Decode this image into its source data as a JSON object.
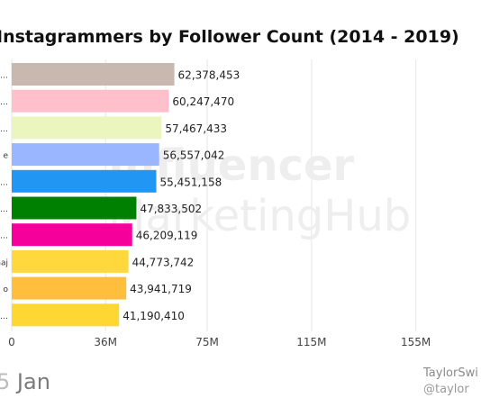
{
  "chart_data": {
    "type": "bar",
    "orientation": "horizontal",
    "title": "Instagrammers by Follower Count (2014 - 2019)",
    "categories": [
      "v…",
      "…",
      "d…",
      "e",
      "r…",
      "…",
      "…",
      "naj",
      "o",
      "…"
    ],
    "values": [
      62378453,
      60247470,
      57467433,
      56557042,
      55451158,
      47833502,
      46209119,
      44773742,
      43941719,
      41190410
    ],
    "value_labels": [
      "62,378,453",
      "60,247,470",
      "57,467,433",
      "56,557,042",
      "55,451,158",
      "47,833,502",
      "46,209,119",
      "44,773,742",
      "43,941,719",
      "41,190,410"
    ],
    "colors": [
      "#c8b8b0",
      "#ffc0cb",
      "#eaf6bd",
      "#9ab6ff",
      "#2196f3",
      "#008000",
      "#f5009b",
      "#ffd83d",
      "#ffbf3d",
      "#ffd733"
    ],
    "x_ticks": [
      {
        "value": 0,
        "label": "0"
      },
      {
        "value": 36000000,
        "label": "36M"
      },
      {
        "value": 75000000,
        "label": "75M"
      },
      {
        "value": 115000000,
        "label": "115M"
      },
      {
        "value": 155000000,
        "label": "155M"
      }
    ],
    "xlim": [
      0,
      180000000
    ],
    "grid": true
  },
  "date": {
    "number": "5",
    "month": "Jan"
  },
  "leader": {
    "name": "TaylorSwi",
    "handle": "@taylor"
  },
  "watermark": {
    "line1": "Influencer",
    "line2": "MarketingHub"
  }
}
